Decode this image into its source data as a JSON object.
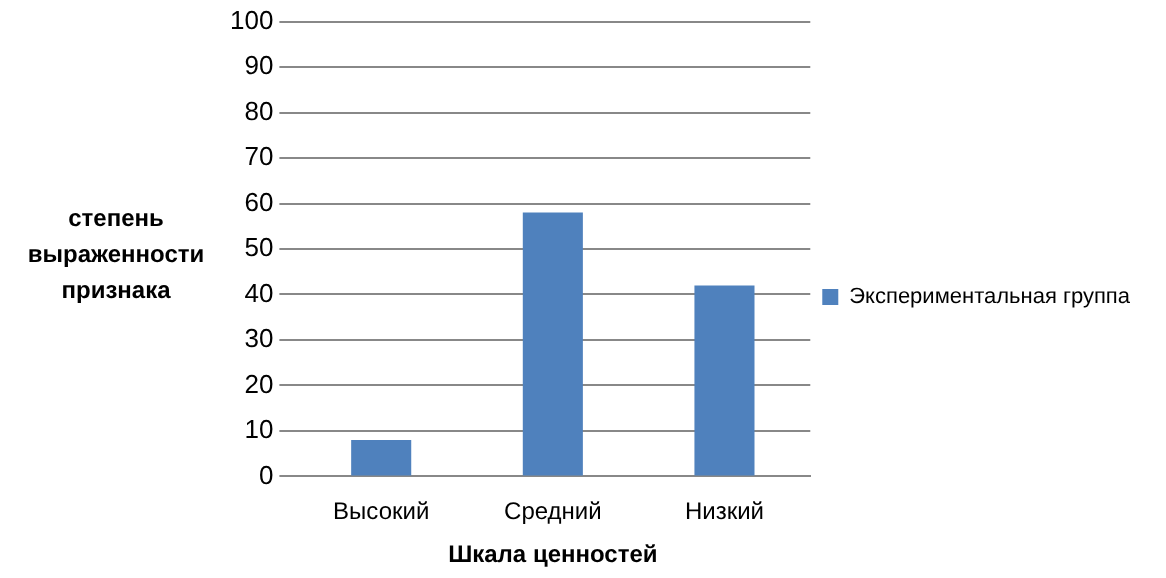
{
  "chart_data": {
    "type": "bar",
    "xlabel": "Шкала ценностей",
    "ylabel": "степень выраженности признака",
    "categories": [
      "Высокий",
      "Средний",
      "Низкий"
    ],
    "series": [
      {
        "name": "Экспериментальная группа",
        "color": "#4f81bd",
        "values": [
          8,
          58,
          42
        ]
      }
    ],
    "ylim": [
      0,
      100
    ],
    "yticks": [
      0,
      10,
      20,
      30,
      40,
      50,
      60,
      70,
      80,
      90,
      100
    ],
    "grid": "y",
    "legend": "right"
  }
}
